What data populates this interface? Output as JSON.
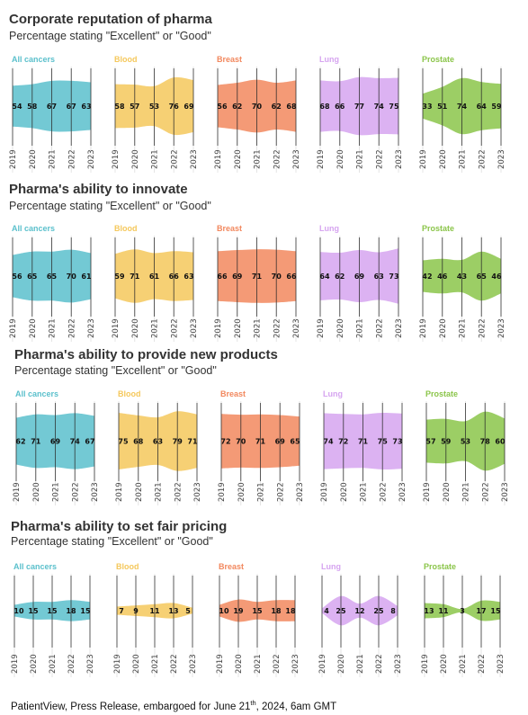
{
  "footer": {
    "text_before": "PatientView, Press Release, embargoed for June 21",
    "superscript": "th",
    "text_after": ", 2024, 6am GMT"
  },
  "chart_data": [
    {
      "type": "area",
      "title": "Corporate reputation of pharma",
      "subtitle": "Percentage stating \"Excellent\" or \"Good\"",
      "x": [
        "2019",
        "2020",
        "2021",
        "2022",
        "2023"
      ],
      "series": [
        {
          "name": "All cancers",
          "color": "#5BC0CC",
          "values": [
            54,
            58,
            67,
            67,
            63
          ]
        },
        {
          "name": "Blood",
          "color": "#F5C85C",
          "values": [
            58,
            57,
            53,
            76,
            69
          ]
        },
        {
          "name": "Breast",
          "color": "#F2885E",
          "values": [
            56,
            62,
            70,
            62,
            68
          ]
        },
        {
          "name": "Lung",
          "color": "#D6A4F0",
          "values": [
            68,
            66,
            77,
            74,
            75
          ]
        },
        {
          "name": "Prostate",
          "color": "#8BC54A",
          "values": [
            33,
            51,
            74,
            64,
            59
          ]
        }
      ]
    },
    {
      "type": "area",
      "title": "Pharma's ability to innovate",
      "subtitle": "Percentage stating \"Excellent\" or \"Good\"",
      "x": [
        "2019",
        "2020",
        "2021",
        "2022",
        "2023"
      ],
      "series": [
        {
          "name": "All cancers",
          "color": "#5BC0CC",
          "values": [
            56,
            65,
            65,
            70,
            61
          ]
        },
        {
          "name": "Blood",
          "color": "#F5C85C",
          "values": [
            59,
            71,
            61,
            66,
            63
          ]
        },
        {
          "name": "Breast",
          "color": "#F2885E",
          "values": [
            66,
            69,
            71,
            70,
            66
          ]
        },
        {
          "name": "Lung",
          "color": "#D6A4F0",
          "values": [
            64,
            62,
            69,
            63,
            73
          ]
        },
        {
          "name": "Prostate",
          "color": "#8BC54A",
          "values": [
            42,
            46,
            43,
            65,
            46
          ]
        }
      ]
    },
    {
      "type": "area",
      "title": "Pharma's ability to provide new products",
      "subtitle": "Percentage stating \"Excellent\" or \"Good\"",
      "x": [
        "2019",
        "2020",
        "2021",
        "2022",
        "2023"
      ],
      "series": [
        {
          "name": "All cancers",
          "color": "#5BC0CC",
          "values": [
            62,
            71,
            69,
            74,
            67
          ]
        },
        {
          "name": "Blood",
          "color": "#F5C85C",
          "values": [
            75,
            68,
            63,
            79,
            71
          ]
        },
        {
          "name": "Breast",
          "color": "#F2885E",
          "values": [
            72,
            70,
            71,
            69,
            65
          ]
        },
        {
          "name": "Lung",
          "color": "#D6A4F0",
          "values": [
            74,
            72,
            71,
            75,
            73
          ]
        },
        {
          "name": "Prostate",
          "color": "#8BC54A",
          "values": [
            57,
            59,
            53,
            78,
            60
          ]
        }
      ]
    },
    {
      "type": "area",
      "title": "Pharma's ability to set fair pricing",
      "subtitle": "Percentage stating \"Excellent\" or \"Good\"",
      "x": [
        "2019",
        "2020",
        "2021",
        "2022",
        "2023"
      ],
      "series": [
        {
          "name": "All cancers",
          "color": "#5BC0CC",
          "values": [
            10,
            15,
            15,
            18,
            15
          ]
        },
        {
          "name": "Blood",
          "color": "#F5C85C",
          "values": [
            7,
            9,
            11,
            13,
            5
          ]
        },
        {
          "name": "Breast",
          "color": "#F2885E",
          "values": [
            10,
            19,
            15,
            18,
            18
          ]
        },
        {
          "name": "Lung",
          "color": "#D6A4F0",
          "values": [
            4,
            25,
            12,
            25,
            8
          ]
        },
        {
          "name": "Prostate",
          "color": "#8BC54A",
          "values": [
            13,
            11,
            3,
            17,
            15
          ]
        }
      ]
    }
  ]
}
